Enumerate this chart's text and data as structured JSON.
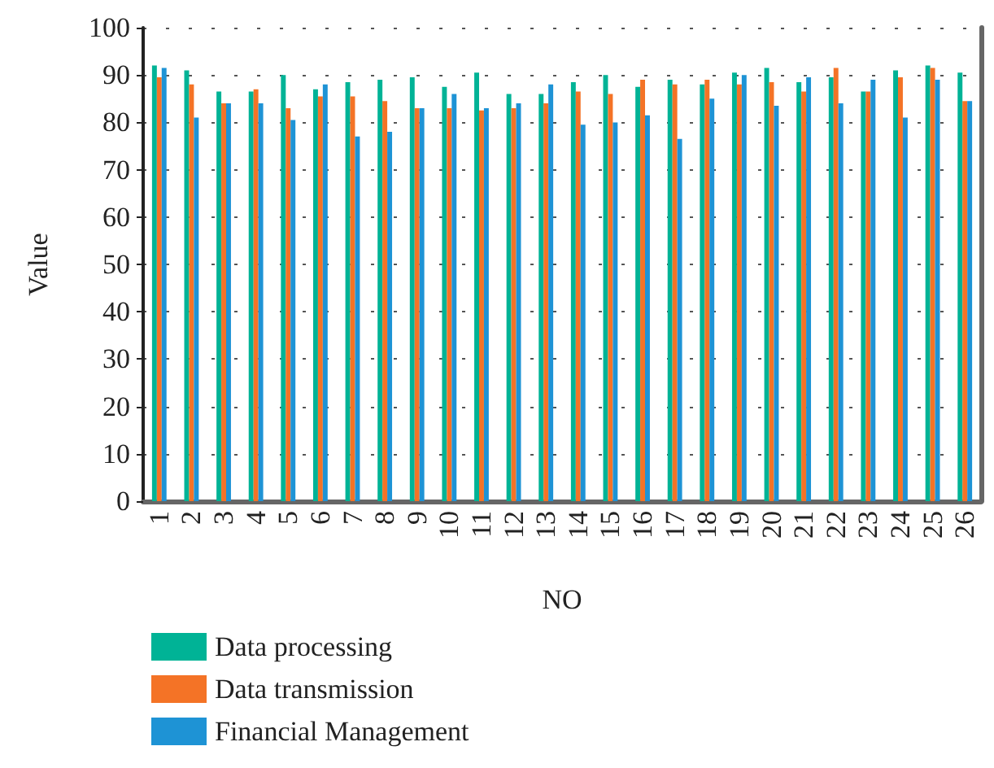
{
  "chart_data": {
    "type": "bar",
    "xlabel": "NO",
    "ylabel": "Value",
    "categories": [
      "1",
      "2",
      "3",
      "4",
      "5",
      "6",
      "7",
      "8",
      "9",
      "10",
      "11",
      "12",
      "13",
      "14",
      "15",
      "16",
      "17",
      "18",
      "19",
      "20",
      "21",
      "22",
      "23",
      "24",
      "25",
      "26"
    ],
    "series": [
      {
        "name": "Data processing",
        "color": "#00b396",
        "values": [
          92,
          91,
          86.5,
          86.5,
          90,
          87,
          88.5,
          89,
          89.5,
          87.5,
          90.5,
          86,
          86,
          88.5,
          90,
          87.5,
          89,
          88,
          90.5,
          91.5,
          88.5,
          89.5,
          86.5,
          91,
          92,
          90.5
        ]
      },
      {
        "name": "Data transmission",
        "color": "#f47326",
        "values": [
          89.5,
          88,
          84,
          87,
          83,
          85.5,
          85.5,
          84.5,
          83,
          83,
          82.5,
          83,
          84,
          86.5,
          86,
          89,
          88,
          89,
          88,
          88.5,
          86.5,
          91.5,
          86.5,
          89.5,
          91.5,
          84.5
        ]
      },
      {
        "name": "Financial Management",
        "color": "#1e93d5",
        "values": [
          91.5,
          81,
          84,
          84,
          80.5,
          88,
          77,
          78,
          83,
          86,
          83,
          84,
          88,
          79.5,
          80,
          81.5,
          76.5,
          85,
          90,
          83.5,
          89.5,
          84,
          89,
          81,
          89,
          84.5
        ]
      }
    ],
    "ylim": [
      0,
      100
    ],
    "yticks": [
      0,
      10,
      20,
      30,
      40,
      50,
      60,
      70,
      80,
      90,
      100
    ],
    "grid": "y",
    "legend": "bottom left"
  }
}
